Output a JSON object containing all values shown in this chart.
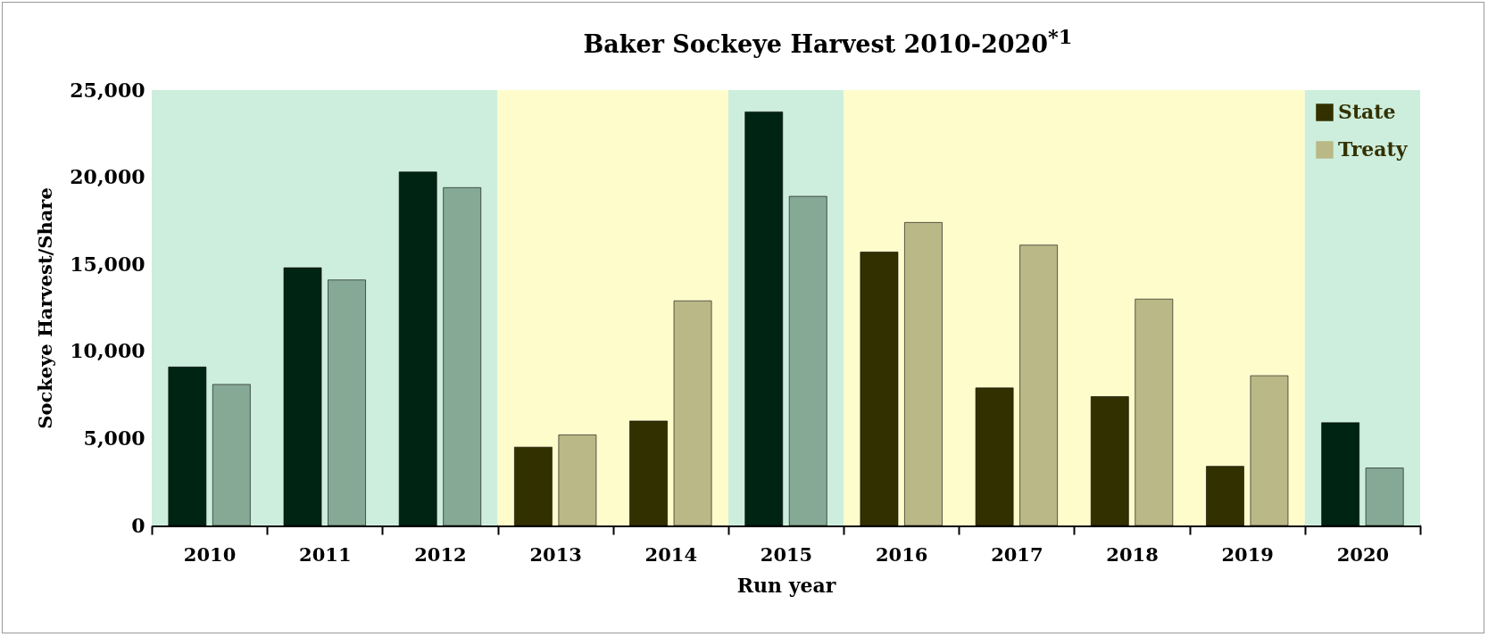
{
  "chart_data": {
    "type": "bar",
    "title": "Baker Sockeye Harvest 2010-2020$^{*1}$",
    "xlabel": "Run year",
    "ylabel": "Sockeye Harvest/Share",
    "categories": [
      "2010",
      "2011",
      "2012",
      "2013",
      "2014",
      "2015",
      "2016",
      "2017",
      "2018",
      "2019",
      "2020"
    ],
    "series": [
      {
        "name": "State",
        "color": "#333000",
        "colors": [
          "#002414",
          "#002414",
          "#002414",
          "#333000",
          "#333000",
          "#002414",
          "#333000",
          "#333000",
          "#333000",
          "#333000",
          "#002414"
        ],
        "values": [
          9100,
          14800,
          20300,
          4500,
          6000,
          23750,
          15700,
          7900,
          7400,
          3400,
          5900
        ]
      },
      {
        "name": "Treaty",
        "color": "#bab887",
        "colors": [
          "#86a995",
          "#86a995",
          "#86a995",
          "#bab887",
          "#bab887",
          "#86a995",
          "#bab887",
          "#bab887",
          "#bab887",
          "#bab887",
          "#86a995"
        ],
        "values": [
          8100,
          14100,
          19400,
          5200,
          12900,
          18900,
          17400,
          16100,
          13000,
          8600,
          3300
        ]
      }
    ],
    "ylim": [
      0,
      25000
    ],
    "yticks": [
      {
        "value": 0,
        "label": "0"
      },
      {
        "value": 5000,
        "label": "5,000"
      },
      {
        "value": 10000,
        "label": "10,000"
      },
      {
        "value": 15000,
        "label": "15,000"
      },
      {
        "value": 20000,
        "label": "20,000"
      },
      {
        "value": 25000,
        "label": "25,000"
      }
    ],
    "bands": [
      {
        "axis": "x",
        "from": "2010",
        "to": "2012",
        "color": "#cdeedd"
      },
      {
        "axis": "x",
        "from": "2013",
        "to": "2014",
        "color": "#fffccc"
      },
      {
        "axis": "x",
        "from": "2015",
        "to": "2015",
        "color": "#cdeedd"
      },
      {
        "axis": "x",
        "from": "2016",
        "to": "2019",
        "color": "#fffccc"
      },
      {
        "axis": "x",
        "from": "2020",
        "to": "2020",
        "color": "#cdeedd"
      }
    ],
    "grid": false,
    "legend": "top right"
  }
}
